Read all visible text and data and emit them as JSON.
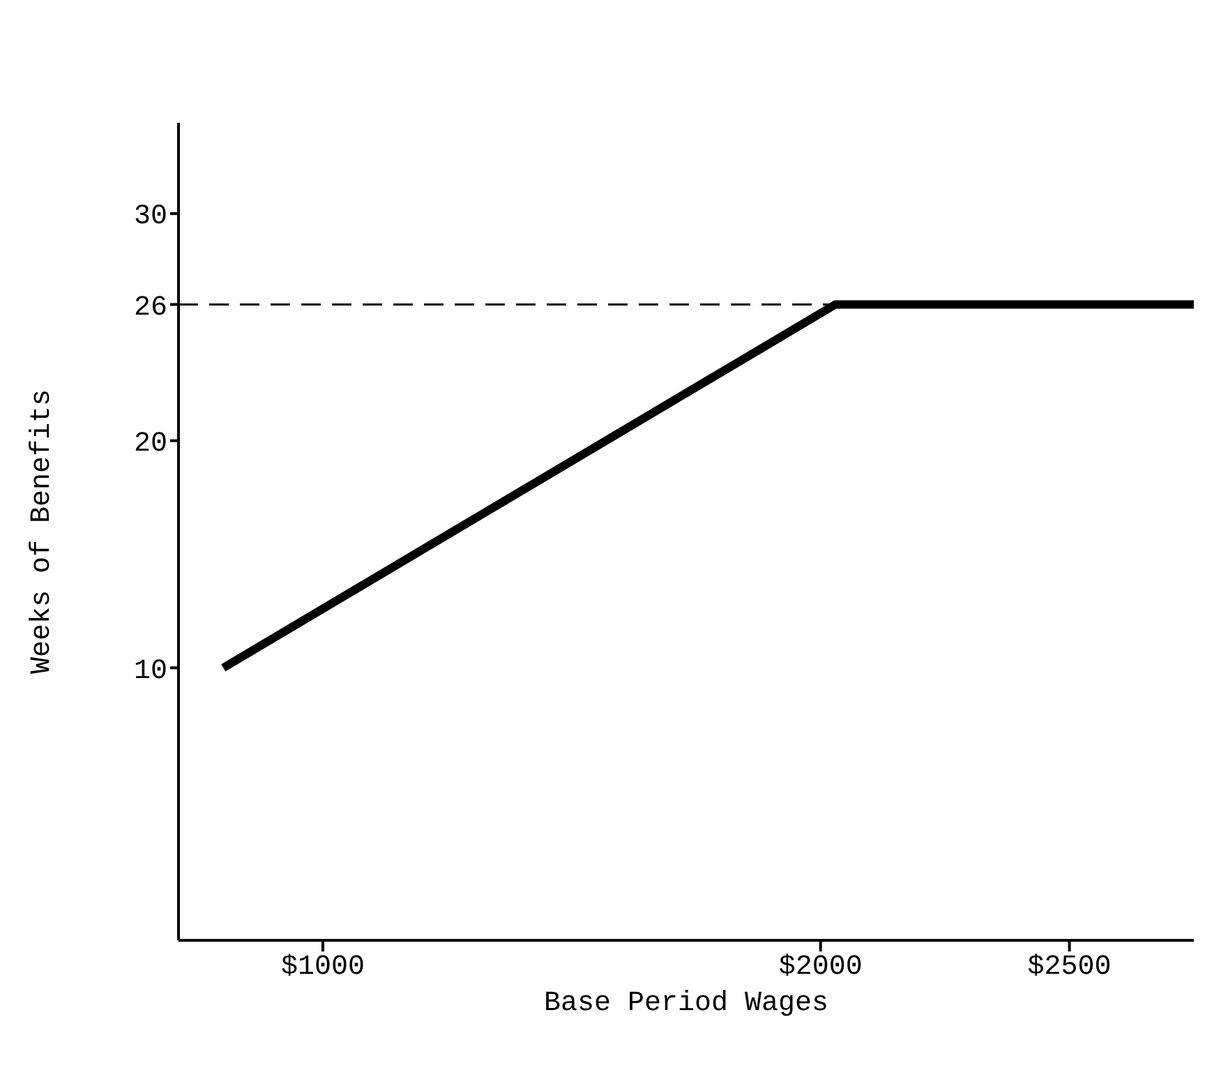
{
  "chart_data": {
    "type": "line",
    "xlabel": "Base Period Wages",
    "ylabel": "Weeks of Benefits",
    "x": [
      800,
      2030,
      2750
    ],
    "series": [
      {
        "color": "#000000",
        "values": [
          10,
          26,
          26
        ]
      }
    ],
    "xlim": [
      710,
      2750
    ],
    "xticks": [
      {
        "value": 1000,
        "label": "$1000"
      },
      {
        "value": 2000,
        "label": "$2000"
      },
      {
        "value": 2500,
        "label": "$2500"
      }
    ],
    "ylim": [
      -2,
      34
    ],
    "yticks": [
      10,
      20,
      26,
      30
    ],
    "ref_lines": [
      {
        "axis": "y",
        "value": 26,
        "color": "#000000",
        "line_style": "dashed"
      }
    ],
    "grid": false,
    "legend": false,
    "marker": "none",
    "line_style": "solid"
  }
}
